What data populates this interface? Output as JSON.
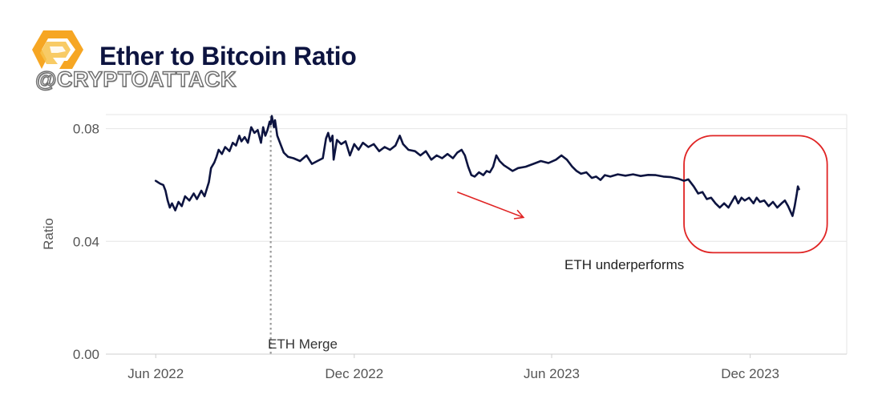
{
  "header": {
    "title": "Ether to Bitcoin Ratio",
    "watermark": "@CRYPTOATTACK",
    "logo_icon": "cryptoattack-logo-icon"
  },
  "colors": {
    "line": "#0d1440",
    "annotation": "#e02424",
    "grid": "#e6e6e6",
    "merge_line": "#9a9a9a",
    "text": "#333333",
    "title": "#0d1440"
  },
  "chart_data": {
    "type": "line",
    "title": "Ether to Bitcoin Ratio",
    "xlabel": "",
    "ylabel": "Ratio",
    "ylim": [
      0,
      0.085
    ],
    "yticks": [
      0,
      0.04,
      0.08
    ],
    "ytick_labels": [
      "0.00",
      "0.04",
      "0.08"
    ],
    "xlim": [
      "2022-04-16",
      "2024-02-28"
    ],
    "xticks": [
      "2022-06-01",
      "2022-12-01",
      "2023-06-01",
      "2023-12-01"
    ],
    "xtick_labels": [
      "Jun 2022",
      "Dec 2022",
      "Jun 2023",
      "Dec 2023"
    ],
    "grid": "horizontal",
    "series": [
      {
        "points": [
          [
            "2022-06-01",
            0.0615
          ],
          [
            "2022-06-05",
            0.0605
          ],
          [
            "2022-06-08",
            0.06
          ],
          [
            "2022-06-10",
            0.058
          ],
          [
            "2022-06-12",
            0.0545
          ],
          [
            "2022-06-14",
            0.052
          ],
          [
            "2022-06-16",
            0.0535
          ],
          [
            "2022-06-19",
            0.051
          ],
          [
            "2022-06-22",
            0.054
          ],
          [
            "2022-06-25",
            0.0525
          ],
          [
            "2022-06-28",
            0.056
          ],
          [
            "2022-07-02",
            0.0545
          ],
          [
            "2022-07-06",
            0.057
          ],
          [
            "2022-07-09",
            0.055
          ],
          [
            "2022-07-13",
            0.058
          ],
          [
            "2022-07-16",
            0.056
          ],
          [
            "2022-07-20",
            0.061
          ],
          [
            "2022-07-22",
            0.066
          ],
          [
            "2022-07-25",
            0.068
          ],
          [
            "2022-07-27",
            0.07
          ],
          [
            "2022-07-29",
            0.0725
          ],
          [
            "2022-08-01",
            0.071
          ],
          [
            "2022-08-04",
            0.0735
          ],
          [
            "2022-08-08",
            0.072
          ],
          [
            "2022-08-11",
            0.075
          ],
          [
            "2022-08-14",
            0.074
          ],
          [
            "2022-08-17",
            0.0775
          ],
          [
            "2022-08-19",
            0.0755
          ],
          [
            "2022-08-22",
            0.077
          ],
          [
            "2022-08-25",
            0.075
          ],
          [
            "2022-08-28",
            0.0805
          ],
          [
            "2022-08-31",
            0.0785
          ],
          [
            "2022-09-03",
            0.0795
          ],
          [
            "2022-09-06",
            0.075
          ],
          [
            "2022-09-08",
            0.0805
          ],
          [
            "2022-09-10",
            0.0775
          ],
          [
            "2022-09-12",
            0.0795
          ],
          [
            "2022-09-14",
            0.0825
          ],
          [
            "2022-09-15",
            0.0815
          ],
          [
            "2022-09-16",
            0.0845
          ],
          [
            "2022-09-18",
            0.0805
          ],
          [
            "2022-09-19",
            0.083
          ],
          [
            "2022-09-21",
            0.0775
          ],
          [
            "2022-09-24",
            0.0745
          ],
          [
            "2022-09-27",
            0.0715
          ],
          [
            "2022-10-01",
            0.07
          ],
          [
            "2022-10-06",
            0.0695
          ],
          [
            "2022-10-12",
            0.0685
          ],
          [
            "2022-10-18",
            0.0705
          ],
          [
            "2022-10-23",
            0.0675
          ],
          [
            "2022-10-28",
            0.0685
          ],
          [
            "2022-11-02",
            0.0695
          ],
          [
            "2022-11-05",
            0.0765
          ],
          [
            "2022-11-07",
            0.0785
          ],
          [
            "2022-11-09",
            0.0755
          ],
          [
            "2022-11-11",
            0.0775
          ],
          [
            "2022-11-12",
            0.069
          ],
          [
            "2022-11-15",
            0.076
          ],
          [
            "2022-11-19",
            0.0745
          ],
          [
            "2022-11-23",
            0.0755
          ],
          [
            "2022-11-27",
            0.0705
          ],
          [
            "2022-12-01",
            0.0745
          ],
          [
            "2022-12-05",
            0.0725
          ],
          [
            "2022-12-09",
            0.075
          ],
          [
            "2022-12-14",
            0.0735
          ],
          [
            "2022-12-19",
            0.0745
          ],
          [
            "2022-12-24",
            0.072
          ],
          [
            "2022-12-29",
            0.0735
          ],
          [
            "2023-01-03",
            0.0725
          ],
          [
            "2023-01-08",
            0.074
          ],
          [
            "2023-01-12",
            0.0775
          ],
          [
            "2023-01-15",
            0.0745
          ],
          [
            "2023-01-20",
            0.0725
          ],
          [
            "2023-01-26",
            0.072
          ],
          [
            "2023-01-31",
            0.0705
          ],
          [
            "2023-02-05",
            0.072
          ],
          [
            "2023-02-10",
            0.069
          ],
          [
            "2023-02-15",
            0.0705
          ],
          [
            "2023-02-20",
            0.0695
          ],
          [
            "2023-02-25",
            0.071
          ],
          [
            "2023-03-02",
            0.0695
          ],
          [
            "2023-03-06",
            0.0715
          ],
          [
            "2023-03-10",
            0.0725
          ],
          [
            "2023-03-13",
            0.0705
          ],
          [
            "2023-03-16",
            0.0665
          ],
          [
            "2023-03-19",
            0.0635
          ],
          [
            "2023-03-22",
            0.063
          ],
          [
            "2023-03-26",
            0.0645
          ],
          [
            "2023-03-30",
            0.0635
          ],
          [
            "2023-04-02",
            0.065
          ],
          [
            "2023-04-05",
            0.0645
          ],
          [
            "2023-04-08",
            0.0665
          ],
          [
            "2023-04-11",
            0.0705
          ],
          [
            "2023-04-14",
            0.0685
          ],
          [
            "2023-04-18",
            0.067
          ],
          [
            "2023-04-22",
            0.066
          ],
          [
            "2023-04-26",
            0.065
          ],
          [
            "2023-05-01",
            0.066
          ],
          [
            "2023-05-08",
            0.0665
          ],
          [
            "2023-05-15",
            0.0675
          ],
          [
            "2023-05-22",
            0.0685
          ],
          [
            "2023-05-29",
            0.0678
          ],
          [
            "2023-06-05",
            0.069
          ],
          [
            "2023-06-10",
            0.0705
          ],
          [
            "2023-06-15",
            0.069
          ],
          [
            "2023-06-20",
            0.0665
          ],
          [
            "2023-06-24",
            0.065
          ],
          [
            "2023-06-28",
            0.064
          ],
          [
            "2023-07-03",
            0.0645
          ],
          [
            "2023-07-08",
            0.0625
          ],
          [
            "2023-07-12",
            0.063
          ],
          [
            "2023-07-16",
            0.0618
          ],
          [
            "2023-07-20",
            0.0635
          ],
          [
            "2023-07-25",
            0.063
          ],
          [
            "2023-08-01",
            0.0638
          ],
          [
            "2023-08-08",
            0.0633
          ],
          [
            "2023-08-15",
            0.0638
          ],
          [
            "2023-08-22",
            0.0632
          ],
          [
            "2023-08-29",
            0.0636
          ],
          [
            "2023-09-05",
            0.0635
          ],
          [
            "2023-09-12",
            0.063
          ],
          [
            "2023-09-19",
            0.0628
          ],
          [
            "2023-09-26",
            0.0622
          ],
          [
            "2023-10-01",
            0.0615
          ],
          [
            "2023-10-05",
            0.062
          ],
          [
            "2023-10-10",
            0.0595
          ],
          [
            "2023-10-14",
            0.057
          ],
          [
            "2023-10-18",
            0.0575
          ],
          [
            "2023-10-22",
            0.055
          ],
          [
            "2023-10-26",
            0.0555
          ],
          [
            "2023-10-30",
            0.0535
          ],
          [
            "2023-11-03",
            0.052
          ],
          [
            "2023-11-07",
            0.0535
          ],
          [
            "2023-11-11",
            0.052
          ],
          [
            "2023-11-14",
            0.054
          ],
          [
            "2023-11-17",
            0.056
          ],
          [
            "2023-11-20",
            0.0535
          ],
          [
            "2023-11-23",
            0.0555
          ],
          [
            "2023-11-26",
            0.0545
          ],
          [
            "2023-11-30",
            0.0555
          ],
          [
            "2023-12-04",
            0.0535
          ],
          [
            "2023-12-07",
            0.0555
          ],
          [
            "2023-12-10",
            0.054
          ],
          [
            "2023-12-14",
            0.0545
          ],
          [
            "2023-12-18",
            0.0525
          ],
          [
            "2023-12-22",
            0.054
          ],
          [
            "2023-12-26",
            0.052
          ],
          [
            "2023-12-30",
            0.0535
          ],
          [
            "2024-01-02",
            0.0545
          ],
          [
            "2024-01-05",
            0.0525
          ],
          [
            "2024-01-09",
            0.049
          ],
          [
            "2024-01-11",
            0.0525
          ],
          [
            "2024-01-13",
            0.057
          ],
          [
            "2024-01-14",
            0.0595
          ],
          [
            "2024-01-15",
            0.0585
          ]
        ]
      }
    ],
    "annotations": {
      "merge_label": "ETH Merge",
      "merge_date": "2022-09-15",
      "underperform_label": "ETH underperforms",
      "highlight_range": [
        "2023-10-01",
        "2024-02-10"
      ],
      "highlight_ylim": [
        0.036,
        0.0775
      ],
      "arrow_from": [
        "2023-03-06",
        0.0575
      ],
      "arrow_to": [
        "2023-05-06",
        0.0485
      ]
    }
  }
}
